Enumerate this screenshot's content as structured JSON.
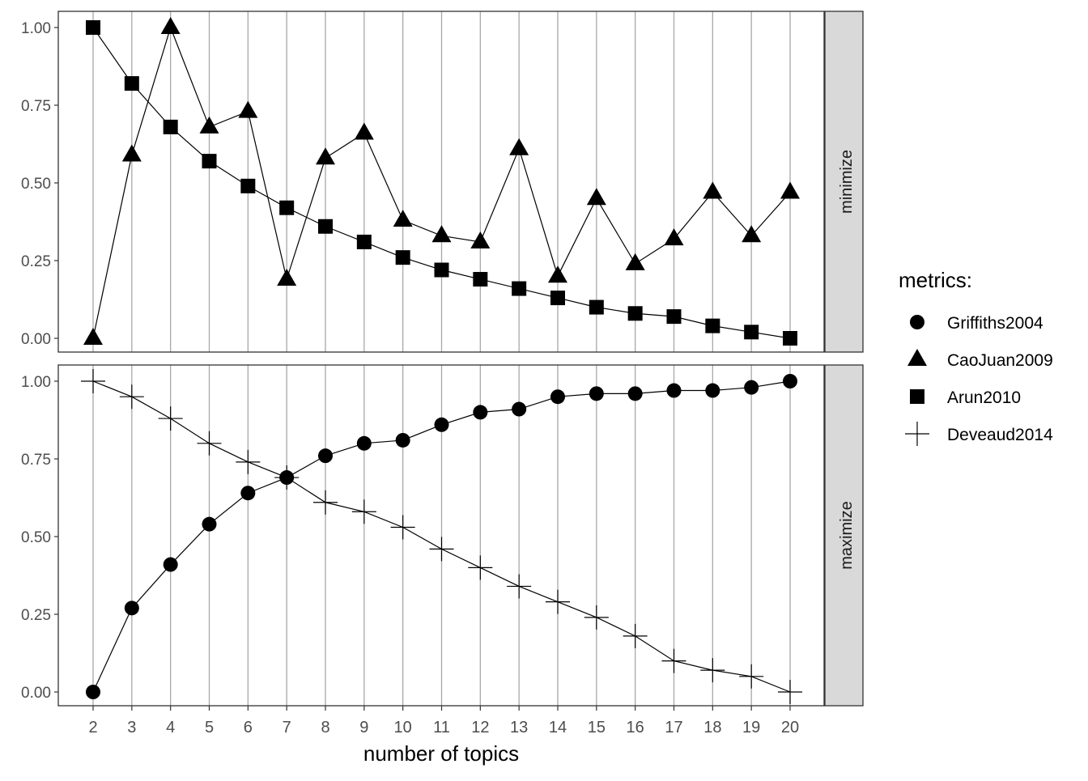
{
  "chart_data": {
    "type": "line",
    "xlabel": "number of topics",
    "x": [
      2,
      3,
      4,
      5,
      6,
      7,
      8,
      9,
      10,
      11,
      12,
      13,
      14,
      15,
      16,
      17,
      18,
      19,
      20
    ],
    "y_ticks": [
      "0.00",
      "0.25",
      "0.50",
      "0.75",
      "1.00"
    ],
    "ylim": [
      0,
      1
    ],
    "grid": "vertical major lines",
    "legend": {
      "title": "metrics:",
      "placement": "right",
      "entries": [
        {
          "name": "Griffiths2004",
          "shape": "circle"
        },
        {
          "name": "CaoJuan2009",
          "shape": "triangle"
        },
        {
          "name": "Arun2010",
          "shape": "square"
        },
        {
          "name": "Deveaud2014",
          "shape": "plus"
        }
      ]
    },
    "panels": [
      {
        "strip": "minimize",
        "series": [
          {
            "name": "CaoJuan2009",
            "shape": "triangle",
            "values": [
              0.0,
              0.59,
              1.0,
              0.68,
              0.73,
              0.19,
              0.58,
              0.66,
              0.38,
              0.33,
              0.31,
              0.61,
              0.2,
              0.45,
              0.24,
              0.32,
              0.47,
              0.33,
              0.47
            ]
          },
          {
            "name": "Arun2010",
            "shape": "square",
            "values": [
              1.0,
              0.82,
              0.68,
              0.57,
              0.49,
              0.42,
              0.36,
              0.31,
              0.26,
              0.22,
              0.19,
              0.16,
              0.13,
              0.1,
              0.08,
              0.07,
              0.04,
              0.02,
              0.0
            ]
          }
        ]
      },
      {
        "strip": "maximize",
        "series": [
          {
            "name": "Griffiths2004",
            "shape": "circle",
            "values": [
              0.0,
              0.27,
              0.41,
              0.54,
              0.64,
              0.69,
              0.76,
              0.8,
              0.81,
              0.86,
              0.9,
              0.91,
              0.95,
              0.96,
              0.96,
              0.97,
              0.97,
              0.98,
              1.0
            ]
          },
          {
            "name": "Deveaud2014",
            "shape": "plus",
            "values": [
              1.0,
              0.95,
              0.88,
              0.8,
              0.74,
              0.69,
              0.61,
              0.58,
              0.53,
              0.46,
              0.4,
              0.34,
              0.29,
              0.24,
              0.18,
              0.1,
              0.07,
              0.05,
              0.0
            ]
          }
        ]
      }
    ]
  },
  "colors": {
    "ink": "#000000",
    "grid": "#a8a8a8",
    "strip": "#d9d9d9",
    "axis_text": "#4d4d4d",
    "frame": "#333333"
  }
}
